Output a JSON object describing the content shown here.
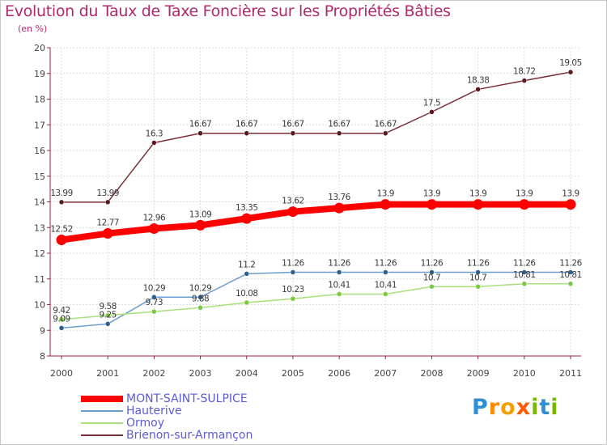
{
  "title": "Evolution du Taux de Taxe Foncière sur les Propriétés Bâties",
  "unit": "(en %)",
  "logo": {
    "letters": [
      "P",
      "r",
      "o",
      "x",
      "i",
      "t",
      "i"
    ],
    "colors": [
      "#2e8fd6",
      "#ff8a00",
      "#f4a000",
      "#ff5a00",
      "#7ab800",
      "#2e8fd6",
      "#7ab800"
    ]
  },
  "chart_data": {
    "type": "line",
    "categories": [
      "2000",
      "2001",
      "2002",
      "2003",
      "2004",
      "2005",
      "2006",
      "2007",
      "2008",
      "2009",
      "2010",
      "2011"
    ],
    "ylim": [
      8,
      20
    ],
    "yticks": [
      8,
      9,
      10,
      11,
      12,
      13,
      14,
      15,
      16,
      17,
      18,
      19,
      20
    ],
    "grid": true,
    "series": [
      {
        "name": "Brienon-sur-Armançon",
        "color": "#7a2e36",
        "marker": "#5a1a1e",
        "weight": "thin",
        "values": [
          13.99,
          13.99,
          16.3,
          16.67,
          16.67,
          16.67,
          16.67,
          16.67,
          17.5,
          18.38,
          18.72,
          19.05
        ],
        "labels": [
          "13.99",
          "13.99",
          "16.3",
          "16.67",
          "16.67",
          "16.67",
          "16.67",
          "16.67",
          "17.5",
          "18.38",
          "18.72",
          "19.05"
        ]
      },
      {
        "name": "Hauterive",
        "color": "#6a9ed2",
        "marker": "#2f5f8c",
        "weight": "thin",
        "values": [
          9.09,
          9.25,
          10.29,
          10.29,
          11.2,
          11.26,
          11.26,
          11.26,
          11.26,
          11.26,
          11.26,
          11.26
        ],
        "labels": [
          "9.09",
          "9.25",
          "10.29",
          "10.29",
          "11.2",
          "11.26",
          "11.26",
          "11.26",
          "11.26",
          "11.26",
          "11.26",
          "11.26"
        ]
      },
      {
        "name": "Ormoy",
        "color": "#a8e07a",
        "marker": "#7cc842",
        "weight": "thin",
        "values": [
          9.42,
          9.58,
          9.73,
          9.88,
          10.08,
          10.23,
          10.41,
          10.41,
          10.7,
          10.7,
          10.81,
          10.81
        ],
        "labels": [
          "9.42",
          "9.58",
          "9.73",
          "9.88",
          "10.08",
          "10.23",
          "10.41",
          "10.41",
          "10.7",
          "10.7",
          "10.81",
          "10.81"
        ]
      },
      {
        "name": "MONT-SAINT-SULPICE",
        "color": "#ff0000",
        "marker": "#ff0000",
        "weight": "thick",
        "values": [
          12.52,
          12.77,
          12.96,
          13.09,
          13.35,
          13.62,
          13.76,
          13.9,
          13.9,
          13.9,
          13.9,
          13.9
        ],
        "labels": [
          "12.52",
          "12.77",
          "12.96",
          "13.09",
          "13.35",
          "13.62",
          "13.76",
          "13.9",
          "13.9",
          "13.9",
          "13.9",
          "13.9"
        ]
      }
    ],
    "legend": [
      {
        "name": "MONT-SAINT-SULPICE",
        "color": "#ff0000",
        "text_color": "#5b5bd6",
        "thick": true
      },
      {
        "name": "Hauterive",
        "color": "#6a9ed2",
        "text_color": "#5b5bd6",
        "thick": false
      },
      {
        "name": "Ormoy",
        "color": "#a8e07a",
        "text_color": "#5b5bd6",
        "thick": false
      },
      {
        "name": "Brienon-sur-Armançon",
        "color": "#7a2e36",
        "text_color": "#5b5bd6",
        "thick": false
      }
    ]
  }
}
